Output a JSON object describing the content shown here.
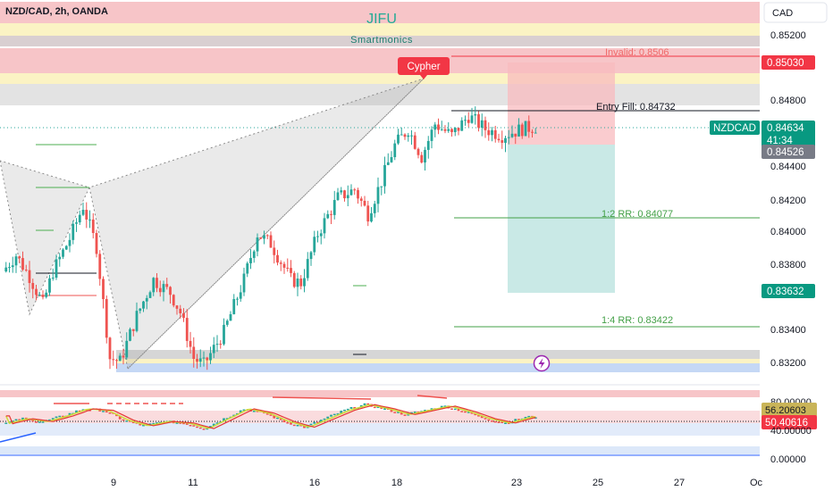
{
  "header": {
    "symbol_line": "NZD/CAD, 2h, OANDA",
    "currency_button": "CAD"
  },
  "watermark": {
    "title": "JIFU",
    "subtitle": "Smartmonics"
  },
  "pattern_label": "Cypher",
  "levels": {
    "invalid": "Invalid: 0.8506",
    "entry": "Entry Fill: 0.84732",
    "rr_1_2": "1:2 RR: 0.84077",
    "rr_1_4": "1:4 RR: 0.83422"
  },
  "price_axis": {
    "ticks": [
      "0.85200",
      "0.84800",
      "0.84400",
      "0.84200",
      "0.84000",
      "0.83800",
      "0.83400",
      "0.83200"
    ],
    "stop_tag": "0.85030",
    "symbol_tag": "NZDCAD",
    "last_price": "0.84634",
    "countdown": "41:34",
    "entry_tag": "0.84526",
    "target_tag": "0.83632"
  },
  "osc_axis": {
    "ticks": [
      "80.00000",
      "40.00000",
      "0.00000"
    ],
    "tag_k": "56.20603",
    "tag_d": "50.40616"
  },
  "time_axis": [
    "9",
    "11",
    "16",
    "18",
    "23",
    "25",
    "27",
    "Oc"
  ],
  "colors": {
    "bull": "#26a69a",
    "bear": "#ef5350",
    "target_zone": "#b2dfdb",
    "stop_zone": "#f8bbbf",
    "supply_band": "#f7c5c8",
    "yellow_band": "#fbf3c4",
    "grey_band": "#d9d9d9",
    "demand_band": "#c5d8f5",
    "entry_tag": "#787b86",
    "target_tag": "#089981",
    "stop_tag": "#f23645"
  },
  "icons": {
    "replay": "lightning-icon"
  },
  "chart_data": {
    "type": "candlestick",
    "symbol": "NZD/CAD",
    "interval": "2h",
    "y_ticks": [
      0.852,
      0.848,
      0.844,
      0.842,
      0.84,
      0.838,
      0.834,
      0.832
    ],
    "x_ticks": [
      "9",
      "11",
      "16",
      "18",
      "23",
      "25",
      "27",
      "Oc"
    ],
    "close_path": [
      [
        0,
        0.8375
      ],
      [
        4,
        0.8385
      ],
      [
        8,
        0.8372
      ],
      [
        12,
        0.8355
      ],
      [
        15,
        0.8375
      ],
      [
        20,
        0.8395
      ],
      [
        24,
        0.8415
      ],
      [
        28,
        0.839
      ],
      [
        32,
        0.8322
      ],
      [
        35,
        0.832
      ],
      [
        40,
        0.8348
      ],
      [
        45,
        0.837
      ],
      [
        50,
        0.8362
      ],
      [
        53,
        0.835
      ],
      [
        57,
        0.8322
      ],
      [
        60,
        0.8318
      ],
      [
        66,
        0.8338
      ],
      [
        72,
        0.837
      ],
      [
        76,
        0.8398
      ],
      [
        80,
        0.8392
      ],
      [
        86,
        0.837
      ],
      [
        89,
        0.8368
      ],
      [
        94,
        0.8398
      ],
      [
        100,
        0.842
      ],
      [
        105,
        0.8425
      ],
      [
        109,
        0.841
      ],
      [
        113,
        0.843
      ],
      [
        117,
        0.8452
      ],
      [
        121,
        0.8462
      ],
      [
        125,
        0.8445
      ],
      [
        129,
        0.8465
      ],
      [
        134,
        0.8458
      ],
      [
        139,
        0.847
      ],
      [
        144,
        0.8462
      ],
      [
        149,
        0.8458
      ],
      [
        155,
        0.8462
      ],
      [
        159,
        0.84634
      ]
    ],
    "price_lines": {
      "invalid": 0.8506,
      "entry": 0.84732,
      "rr_1_2": 0.84077,
      "rr_1_4": 0.83422
    },
    "tags": {
      "stop": 0.8503,
      "last": 0.84634,
      "entry": 0.84526,
      "target": 0.83632
    },
    "oscillator": {
      "levels": [
        80,
        40,
        0
      ],
      "last_k": 56.20603,
      "last_d": 50.40616,
      "path": [
        [
          0,
          45
        ],
        [
          6,
          52
        ],
        [
          12,
          48
        ],
        [
          18,
          56
        ],
        [
          24,
          66
        ],
        [
          30,
          64
        ],
        [
          36,
          50
        ],
        [
          42,
          42
        ],
        [
          48,
          48
        ],
        [
          54,
          46
        ],
        [
          60,
          38
        ],
        [
          66,
          52
        ],
        [
          72,
          66
        ],
        [
          78,
          60
        ],
        [
          84,
          48
        ],
        [
          90,
          40
        ],
        [
          96,
          52
        ],
        [
          102,
          64
        ],
        [
          108,
          72
        ],
        [
          114,
          66
        ],
        [
          120,
          58
        ],
        [
          126,
          64
        ],
        [
          132,
          70
        ],
        [
          138,
          62
        ],
        [
          144,
          52
        ],
        [
          150,
          46
        ],
        [
          156,
          54
        ],
        [
          160,
          56
        ]
      ]
    }
  }
}
